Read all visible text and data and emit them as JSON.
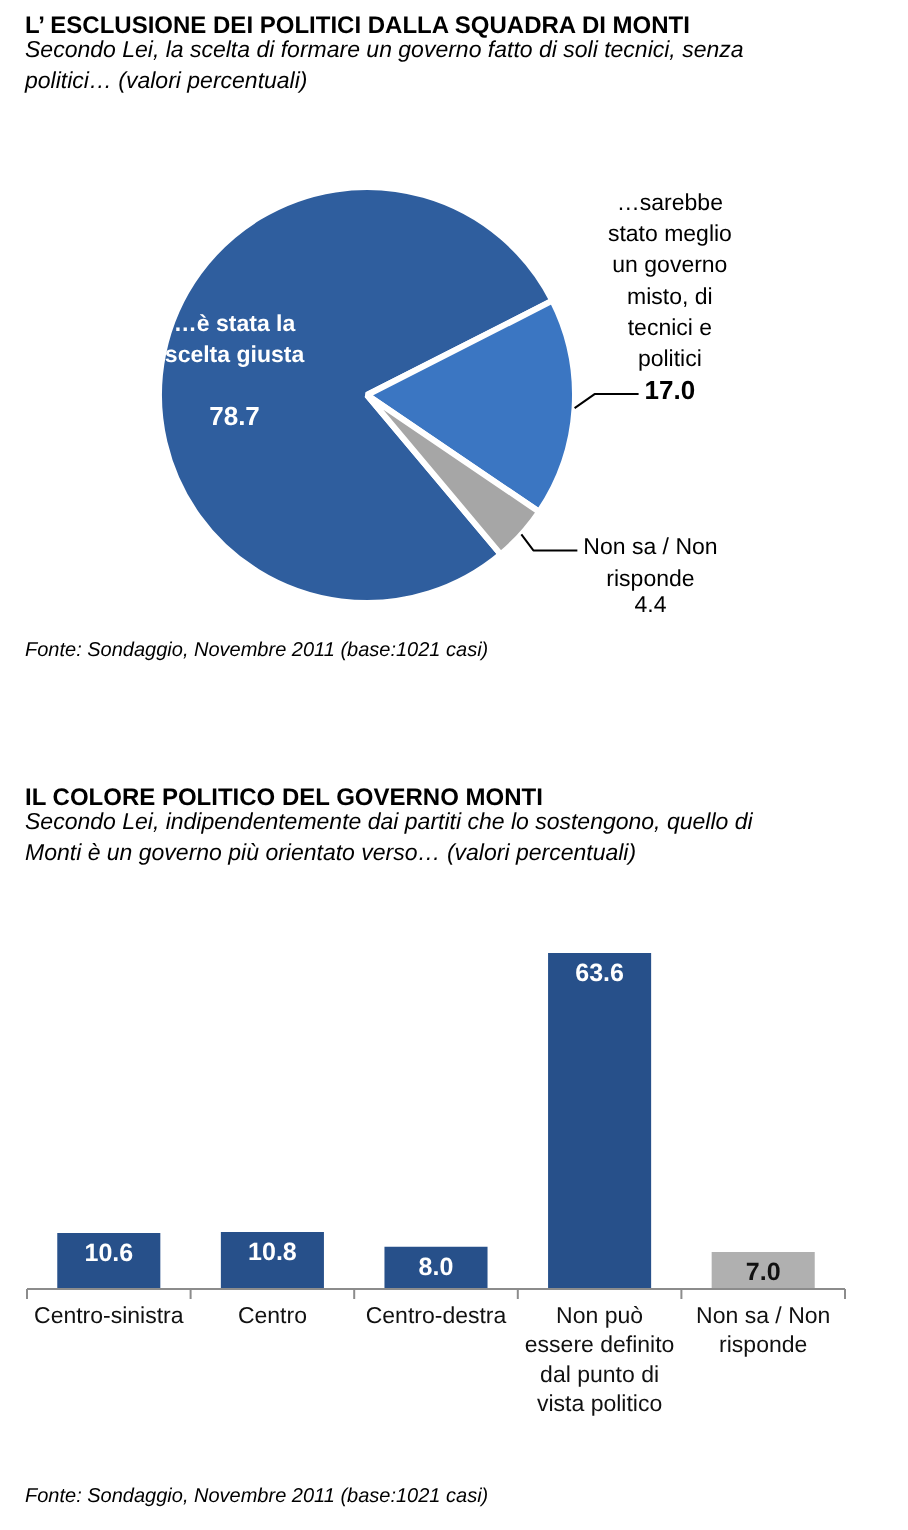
{
  "chart_data": [
    {
      "type": "pie",
      "title": "L’ ESCLUSIONE DEI POLITICI DALLA SQUADRA DI MONTI",
      "subtitle": "Secondo Lei, la scelta di formare un governo fatto di soli tecnici, senza politici… (valori percentuali)",
      "categories": [
        "…è stata la scelta giusta",
        "…sarebbe stato meglio un governo misto, di tecnici e politici",
        "Non sa / Non risponde"
      ],
      "values": [
        78.7,
        17.0,
        4.4
      ],
      "value_labels": [
        "78.7",
        "17.0",
        "4.4"
      ],
      "colors": [
        "#2f5e9e",
        "#3b76c2",
        "#a6a6a6"
      ],
      "annotations": [
        "Fonte: Sondaggio, Novembre 2011 (base:1021 casi)"
      ]
    },
    {
      "type": "bar",
      "title": "IL COLORE POLITICO DEL GOVERNO MONTI",
      "subtitle": "Secondo Lei, indipendentemente dai partiti che lo sostengono, quello di Monti è un governo più orientato verso… (valori percentuali)",
      "categories": [
        "Centro-sinistra",
        "Centro",
        "Centro-destra",
        "Non può essere definito dal punto di vista politico",
        "Non sa / Non risponde"
      ],
      "values": [
        10.6,
        10.8,
        8.0,
        63.6,
        7.0
      ],
      "value_labels": [
        "10.6",
        "10.8",
        "8.0",
        "63.6",
        "7.0"
      ],
      "colors": [
        "#27508a",
        "#27508a",
        "#27508a",
        "#27508a",
        "#b0b0b0"
      ],
      "annotations": [
        "Fonte: Sondaggio, Novembre 2011 (base:1021 casi)"
      ]
    }
  ]
}
